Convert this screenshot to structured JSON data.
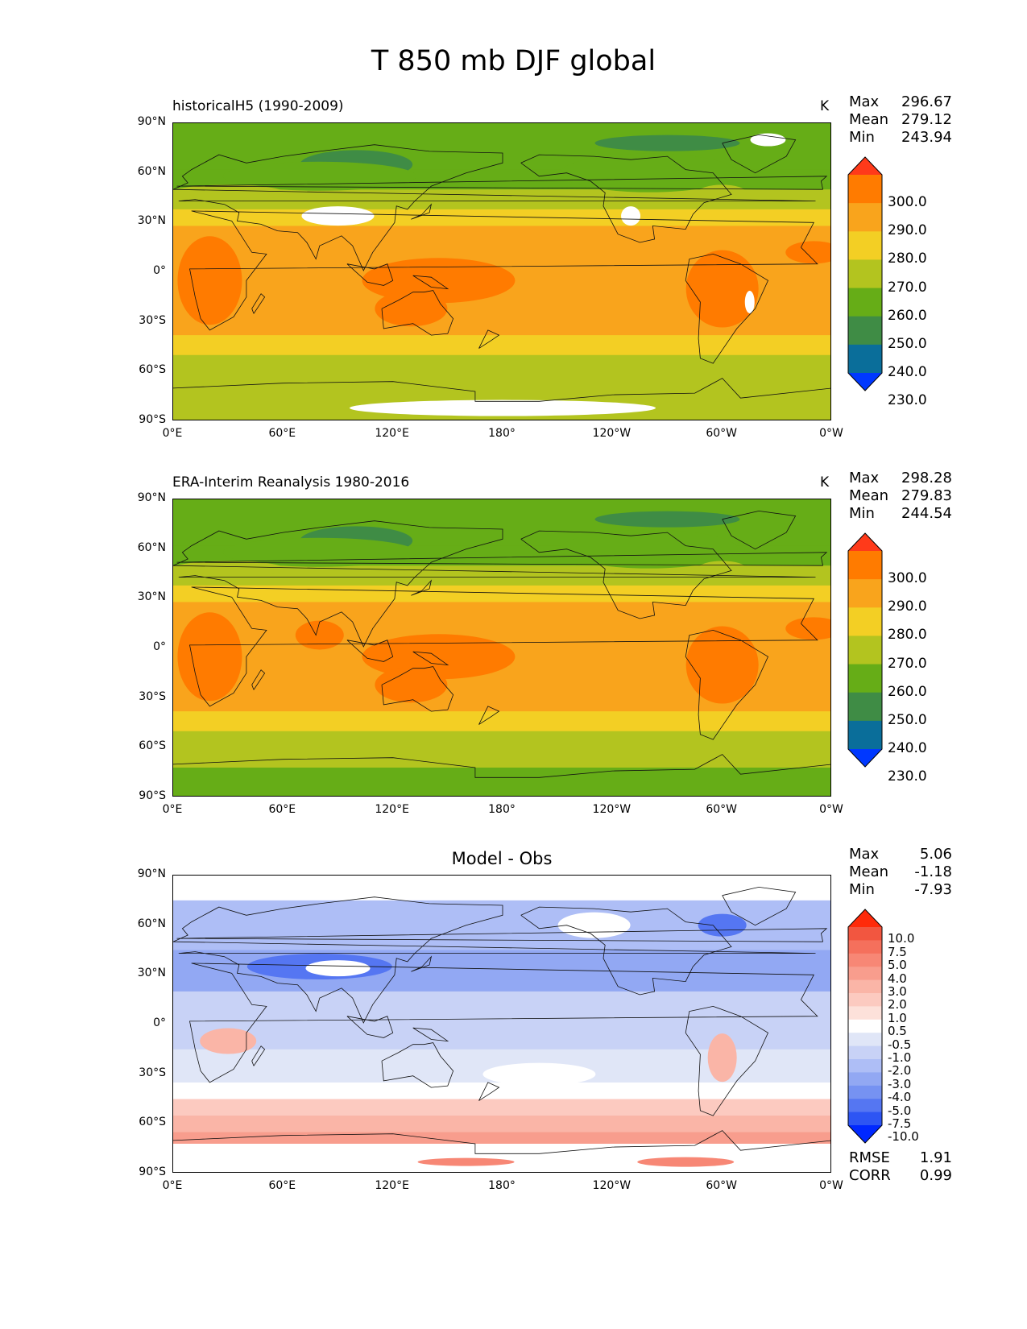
{
  "title": "T 850 mb DJF global",
  "lat_ticks": [
    "90°N",
    "60°N",
    "30°N",
    "0°",
    "30°S",
    "60°S",
    "90°S"
  ],
  "lon_ticks": [
    "0°E",
    "60°E",
    "120°E",
    "180°",
    "120°W",
    "60°W",
    "0°W"
  ],
  "levels_abs": [
    "300.0",
    "290.0",
    "280.0",
    "270.0",
    "260.0",
    "250.0",
    "240.0",
    "230.0"
  ],
  "colors_abs": [
    "#ff3a1a",
    "#ff7b00",
    "#f9a41c",
    "#f3cf24",
    "#b3c41f",
    "#66ad17",
    "#3f8c45",
    "#0a6e9a",
    "#0038ff"
  ],
  "levels_diff": [
    "10.0",
    "7.5",
    "5.0",
    "4.0",
    "3.0",
    "2.0",
    "1.0",
    "0.5",
    "-0.5",
    "-1.0",
    "-2.0",
    "-3.0",
    "-4.0",
    "-5.0",
    "-7.5",
    "-10.0"
  ],
  "colors_diff": [
    "#ff2a0a",
    "#f25640",
    "#f5705c",
    "#f78775",
    "#f89d8d",
    "#fab5a7",
    "#fccac0",
    "#fde1da",
    "#ffffff",
    "#e0e6f7",
    "#c8d2f6",
    "#aebef6",
    "#92a8f3",
    "#7692f2",
    "#5576f2",
    "#2d55f3",
    "#0028ff"
  ],
  "panels": [
    {
      "title": "historicalH5 (1990-2009)",
      "units": "K",
      "stats": {
        "max_label": "Max",
        "max": "296.67",
        "mean_label": "Mean",
        "mean": "279.12",
        "min_label": "Min",
        "min": "243.94"
      }
    },
    {
      "title": "ERA-Interim Reanalysis 1980-2016",
      "units": "K",
      "stats": {
        "max_label": "Max",
        "max": "298.28",
        "mean_label": "Mean",
        "mean": "279.83",
        "min_label": "Min",
        "min": "244.54"
      }
    },
    {
      "title": "Model - Obs",
      "units": "",
      "stats": {
        "max_label": "Max",
        "max": "5.06",
        "mean_label": "Mean",
        "mean": "-1.18",
        "min_label": "Min",
        "min": "-7.93"
      },
      "metrics": {
        "rmse_label": "RMSE",
        "rmse": "1.91",
        "corr_label": "CORR",
        "corr": "0.99"
      }
    }
  ]
}
